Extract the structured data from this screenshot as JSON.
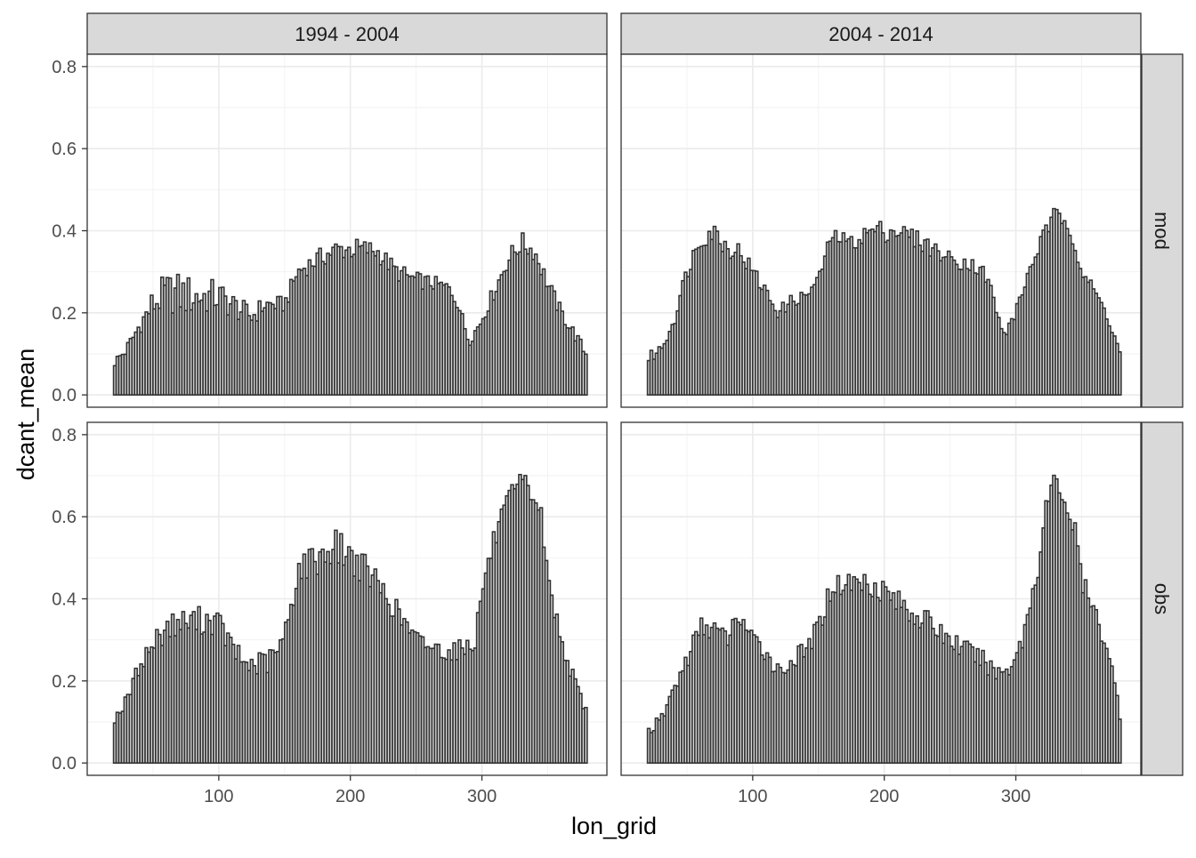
{
  "chart_data": {
    "type": "bar",
    "xlabel": "lon_grid",
    "ylabel": "dcant_mean",
    "xlim": [
      0,
      395
    ],
    "ylim": [
      -0.03,
      0.83
    ],
    "x_ticks": [
      100,
      200,
      300
    ],
    "y_ticks": [
      0.0,
      0.2,
      0.4,
      0.6,
      0.8
    ],
    "y_tick_labels": [
      "0.0",
      "0.2",
      "0.4",
      "0.6",
      "0.8"
    ],
    "grid": true,
    "colors": {
      "bar_fill": "#d9d9d9",
      "bar_outline": "#333333",
      "strip_fill": "#d9d9d9",
      "grid": "#ebebeb"
    },
    "column_facets": [
      "1994 - 2004",
      "2004 - 2014"
    ],
    "row_facets": [
      "mod",
      "obs"
    ],
    "bar_width": 2,
    "panels": [
      {
        "column": "1994 - 2004",
        "row": "mod",
        "x_range": [
          21,
          379
        ],
        "profile": [
          [
            21,
            0.08
          ],
          [
            30,
            0.11
          ],
          [
            40,
            0.17
          ],
          [
            50,
            0.22
          ],
          [
            60,
            0.25
          ],
          [
            80,
            0.24
          ],
          [
            100,
            0.24
          ],
          [
            110,
            0.22
          ],
          [
            125,
            0.19
          ],
          [
            135,
            0.22
          ],
          [
            150,
            0.22
          ],
          [
            160,
            0.3
          ],
          [
            175,
            0.33
          ],
          [
            190,
            0.355
          ],
          [
            210,
            0.355
          ],
          [
            220,
            0.35
          ],
          [
            235,
            0.3
          ],
          [
            250,
            0.28
          ],
          [
            265,
            0.27
          ],
          [
            275,
            0.26
          ],
          [
            282,
            0.22
          ],
          [
            290,
            0.13
          ],
          [
            298,
            0.17
          ],
          [
            305,
            0.22
          ],
          [
            320,
            0.33
          ],
          [
            330,
            0.37
          ],
          [
            340,
            0.35
          ],
          [
            350,
            0.27
          ],
          [
            360,
            0.2
          ],
          [
            370,
            0.15
          ],
          [
            379,
            0.1
          ]
        ],
        "spread": [
          [
            21,
            0.02
          ],
          [
            40,
            0.03
          ],
          [
            50,
            0.06
          ],
          [
            70,
            0.08
          ],
          [
            100,
            0.06
          ],
          [
            120,
            0.04
          ],
          [
            150,
            0.03
          ],
          [
            200,
            0.04
          ],
          [
            250,
            0.03
          ],
          [
            290,
            0.02
          ],
          [
            330,
            0.04
          ],
          [
            379,
            0.02
          ]
        ]
      },
      {
        "column": "2004 - 2014",
        "row": "mod",
        "x_range": [
          21,
          379
        ],
        "profile": [
          [
            21,
            0.09
          ],
          [
            30,
            0.11
          ],
          [
            40,
            0.18
          ],
          [
            50,
            0.3
          ],
          [
            60,
            0.38
          ],
          [
            70,
            0.4
          ],
          [
            80,
            0.36
          ],
          [
            90,
            0.35
          ],
          [
            100,
            0.3
          ],
          [
            110,
            0.25
          ],
          [
            120,
            0.2
          ],
          [
            130,
            0.23
          ],
          [
            140,
            0.24
          ],
          [
            150,
            0.28
          ],
          [
            160,
            0.39
          ],
          [
            175,
            0.37
          ],
          [
            190,
            0.4
          ],
          [
            210,
            0.4
          ],
          [
            230,
            0.37
          ],
          [
            250,
            0.33
          ],
          [
            265,
            0.32
          ],
          [
            275,
            0.3
          ],
          [
            282,
            0.25
          ],
          [
            290,
            0.14
          ],
          [
            300,
            0.2
          ],
          [
            310,
            0.3
          ],
          [
            320,
            0.38
          ],
          [
            330,
            0.44
          ],
          [
            340,
            0.42
          ],
          [
            350,
            0.3
          ],
          [
            360,
            0.25
          ],
          [
            370,
            0.19
          ],
          [
            379,
            0.1
          ]
        ],
        "spread": [
          [
            21,
            0.02
          ],
          [
            50,
            0.03
          ],
          [
            70,
            0.04
          ],
          [
            100,
            0.03
          ],
          [
            150,
            0.02
          ],
          [
            200,
            0.04
          ],
          [
            250,
            0.03
          ],
          [
            300,
            0.02
          ],
          [
            330,
            0.03
          ],
          [
            379,
            0.02
          ]
        ]
      },
      {
        "column": "1994 - 2004",
        "row": "obs",
        "x_range": [
          21,
          379
        ],
        "profile": [
          [
            21,
            0.11
          ],
          [
            30,
            0.15
          ],
          [
            40,
            0.24
          ],
          [
            50,
            0.29
          ],
          [
            60,
            0.33
          ],
          [
            70,
            0.34
          ],
          [
            90,
            0.35
          ],
          [
            100,
            0.34
          ],
          [
            110,
            0.28
          ],
          [
            120,
            0.24
          ],
          [
            130,
            0.24
          ],
          [
            140,
            0.25
          ],
          [
            150,
            0.3
          ],
          [
            160,
            0.47
          ],
          [
            175,
            0.5
          ],
          [
            190,
            0.53
          ],
          [
            205,
            0.49
          ],
          [
            220,
            0.44
          ],
          [
            235,
            0.37
          ],
          [
            250,
            0.3
          ],
          [
            265,
            0.28
          ],
          [
            275,
            0.27
          ],
          [
            285,
            0.28
          ],
          [
            295,
            0.3
          ],
          [
            300,
            0.42
          ],
          [
            310,
            0.55
          ],
          [
            320,
            0.63
          ],
          [
            330,
            0.68
          ],
          [
            340,
            0.65
          ],
          [
            345,
            0.6
          ],
          [
            350,
            0.45
          ],
          [
            360,
            0.3
          ],
          [
            370,
            0.2
          ],
          [
            379,
            0.13
          ]
        ],
        "spread": [
          [
            21,
            0.02
          ],
          [
            40,
            0.03
          ],
          [
            60,
            0.05
          ],
          [
            90,
            0.05
          ],
          [
            120,
            0.04
          ],
          [
            160,
            0.06
          ],
          [
            200,
            0.06
          ],
          [
            260,
            0.03
          ],
          [
            300,
            0.04
          ],
          [
            330,
            0.05
          ],
          [
            379,
            0.02
          ]
        ]
      },
      {
        "column": "2004 - 2014",
        "row": "obs",
        "x_range": [
          21,
          379
        ],
        "profile": [
          [
            21,
            0.08
          ],
          [
            30,
            0.1
          ],
          [
            40,
            0.18
          ],
          [
            50,
            0.25
          ],
          [
            60,
            0.33
          ],
          [
            70,
            0.33
          ],
          [
            80,
            0.3
          ],
          [
            90,
            0.36
          ],
          [
            100,
            0.3
          ],
          [
            110,
            0.27
          ],
          [
            120,
            0.22
          ],
          [
            130,
            0.25
          ],
          [
            140,
            0.27
          ],
          [
            150,
            0.33
          ],
          [
            160,
            0.43
          ],
          [
            175,
            0.44
          ],
          [
            190,
            0.44
          ],
          [
            200,
            0.42
          ],
          [
            215,
            0.38
          ],
          [
            230,
            0.35
          ],
          [
            250,
            0.3
          ],
          [
            265,
            0.27
          ],
          [
            275,
            0.25
          ],
          [
            285,
            0.22
          ],
          [
            295,
            0.23
          ],
          [
            305,
            0.3
          ],
          [
            315,
            0.45
          ],
          [
            325,
            0.65
          ],
          [
            333,
            0.68
          ],
          [
            340,
            0.62
          ],
          [
            345,
            0.55
          ],
          [
            352,
            0.42
          ],
          [
            360,
            0.36
          ],
          [
            370,
            0.28
          ],
          [
            379,
            0.12
          ]
        ],
        "spread": [
          [
            21,
            0.02
          ],
          [
            60,
            0.04
          ],
          [
            100,
            0.03
          ],
          [
            150,
            0.04
          ],
          [
            200,
            0.05
          ],
          [
            250,
            0.04
          ],
          [
            300,
            0.03
          ],
          [
            330,
            0.08
          ],
          [
            379,
            0.02
          ]
        ]
      }
    ]
  }
}
